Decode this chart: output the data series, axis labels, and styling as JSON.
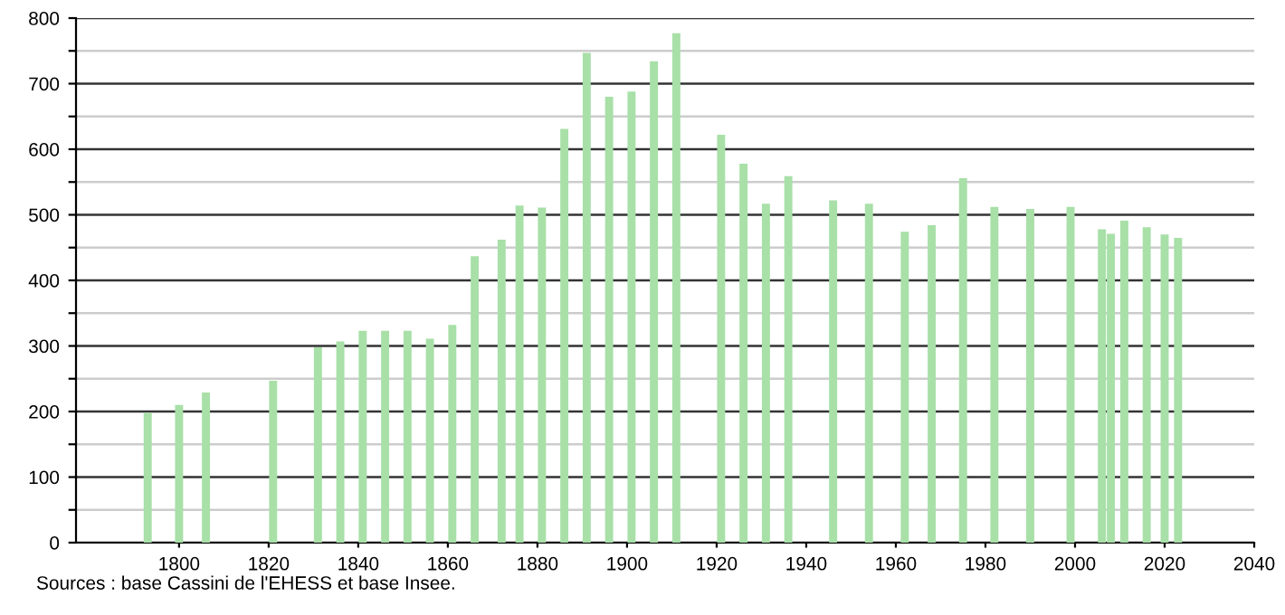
{
  "chart_data": {
    "type": "bar",
    "x": [
      1793,
      1800,
      1806,
      1821,
      1831,
      1836,
      1841,
      1846,
      1851,
      1856,
      1861,
      1866,
      1872,
      1876,
      1881,
      1886,
      1891,
      1896,
      1901,
      1906,
      1911,
      1921,
      1926,
      1931,
      1936,
      1946,
      1954,
      1962,
      1968,
      1975,
      1982,
      1990,
      1999,
      2006,
      2008,
      2011,
      2016,
      2020,
      2023
    ],
    "values": [
      198,
      210,
      229,
      247,
      298,
      307,
      323,
      323,
      323,
      311,
      332,
      437,
      462,
      514,
      511,
      631,
      747,
      680,
      688,
      734,
      777,
      622,
      578,
      517,
      559,
      522,
      517,
      474,
      484,
      556,
      512,
      509,
      512,
      478,
      471,
      491,
      481,
      470,
      465
    ],
    "color": "#a8e0a8",
    "xlim": [
      1777,
      2040
    ],
    "xticks": [
      1800,
      1820,
      1840,
      1860,
      1880,
      1900,
      1920,
      1940,
      1960,
      1980,
      2000,
      2020,
      2040
    ],
    "ylim": [
      0,
      800
    ],
    "yticks": [
      0,
      {
        "value": 50,
        "label": null
      },
      100,
      {
        "value": 150,
        "label": null
      },
      200,
      {
        "value": 250,
        "label": null
      },
      300,
      {
        "value": 350,
        "label": null
      },
      400,
      {
        "value": 450,
        "label": null
      },
      500,
      {
        "value": 550,
        "label": null
      },
      600,
      {
        "value": 650,
        "label": null
      },
      700,
      {
        "value": 750,
        "label": null
      },
      800
    ],
    "grid": "y",
    "annotations": [
      "Sources : base Cassini de l'EHESS et base Insee."
    ]
  }
}
